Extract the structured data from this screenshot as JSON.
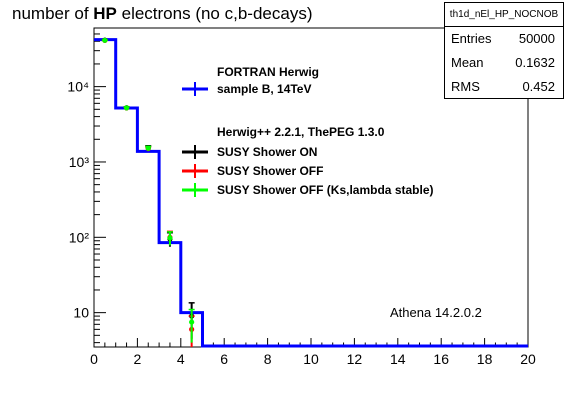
{
  "title": {
    "prefix": "number of ",
    "bold": "HP",
    "suffix": " electrons (no c,b-decays)"
  },
  "stats": {
    "name": "th1d_nEl_HP_NOCNOB",
    "rows": [
      {
        "label": "Entries",
        "value": "50000"
      },
      {
        "label": "Mean",
        "value": "0.1632"
      },
      {
        "label": "RMS",
        "value": "0.452"
      }
    ]
  },
  "legend": {
    "header1": "FORTRAN Herwig",
    "header2": "Herwig++ 2.2.1, ThePEG 1.3.0",
    "entries": [
      {
        "label": "sample B, 14TeV",
        "color": "#0000ff",
        "style": "line"
      },
      {
        "label": "SUSY Shower ON",
        "color": "#000000",
        "style": "marker"
      },
      {
        "label": "SUSY Shower OFF",
        "color": "#ff0000",
        "style": "marker"
      },
      {
        "label": "SUSY Shower OFF (Ks,lambda stable)",
        "color": "#00ff00",
        "style": "marker"
      }
    ]
  },
  "annotation": "Athena 14.2.0.2",
  "chart_data": {
    "type": "line",
    "title": "number of HP electrons (no c,b-decays)",
    "xlim": [
      0,
      20
    ],
    "ylim": [
      3.5,
      60000
    ],
    "yscale": "log",
    "x_ticks": [
      0,
      2,
      4,
      6,
      8,
      10,
      12,
      14,
      16,
      18,
      20
    ],
    "y_ticks": [
      {
        "value": 10,
        "label": "10"
      },
      {
        "value": 100,
        "label": "10²"
      },
      {
        "value": 1000,
        "label": "10³"
      },
      {
        "value": 10000,
        "label": "10⁴"
      }
    ],
    "series": [
      {
        "name": "sample B, 14TeV",
        "color": "#0000ff",
        "kind": "histogram",
        "bin_edges": [
          0,
          1,
          2,
          3,
          4,
          5
        ],
        "values": [
          42000,
          5200,
          1380,
          85,
          10
        ]
      },
      {
        "name": "SUSY Shower ON",
        "color": "#000000",
        "kind": "points",
        "points": [
          {
            "x": 0.5,
            "y": 41500,
            "err": 400
          },
          {
            "x": 1.5,
            "y": 5250,
            "err": 150
          },
          {
            "x": 2.5,
            "y": 1550,
            "err": 90
          },
          {
            "x": 3.5,
            "y": 95,
            "err": 20
          },
          {
            "x": 4.5,
            "y": 9,
            "err": 4.5
          }
        ]
      },
      {
        "name": "SUSY Shower OFF",
        "color": "#ff0000",
        "kind": "points",
        "points": [
          {
            "x": 0.5,
            "y": 41000,
            "err": 400
          },
          {
            "x": 1.5,
            "y": 5200,
            "err": 150
          },
          {
            "x": 2.5,
            "y": 1500,
            "err": 90
          },
          {
            "x": 3.5,
            "y": 100,
            "err": 20
          },
          {
            "x": 4.5,
            "y": 6,
            "err": 3
          }
        ]
      },
      {
        "name": "SUSY Shower OFF (Ks,lambda stable)",
        "color": "#00ff00",
        "kind": "points",
        "points": [
          {
            "x": 0.5,
            "y": 41200,
            "err": 400
          },
          {
            "x": 1.5,
            "y": 5220,
            "err": 150
          },
          {
            "x": 2.5,
            "y": 1520,
            "err": 90
          },
          {
            "x": 3.5,
            "y": 98,
            "err": 20
          },
          {
            "x": 4.5,
            "y": 7.5,
            "err": 3.5
          }
        ]
      }
    ]
  }
}
